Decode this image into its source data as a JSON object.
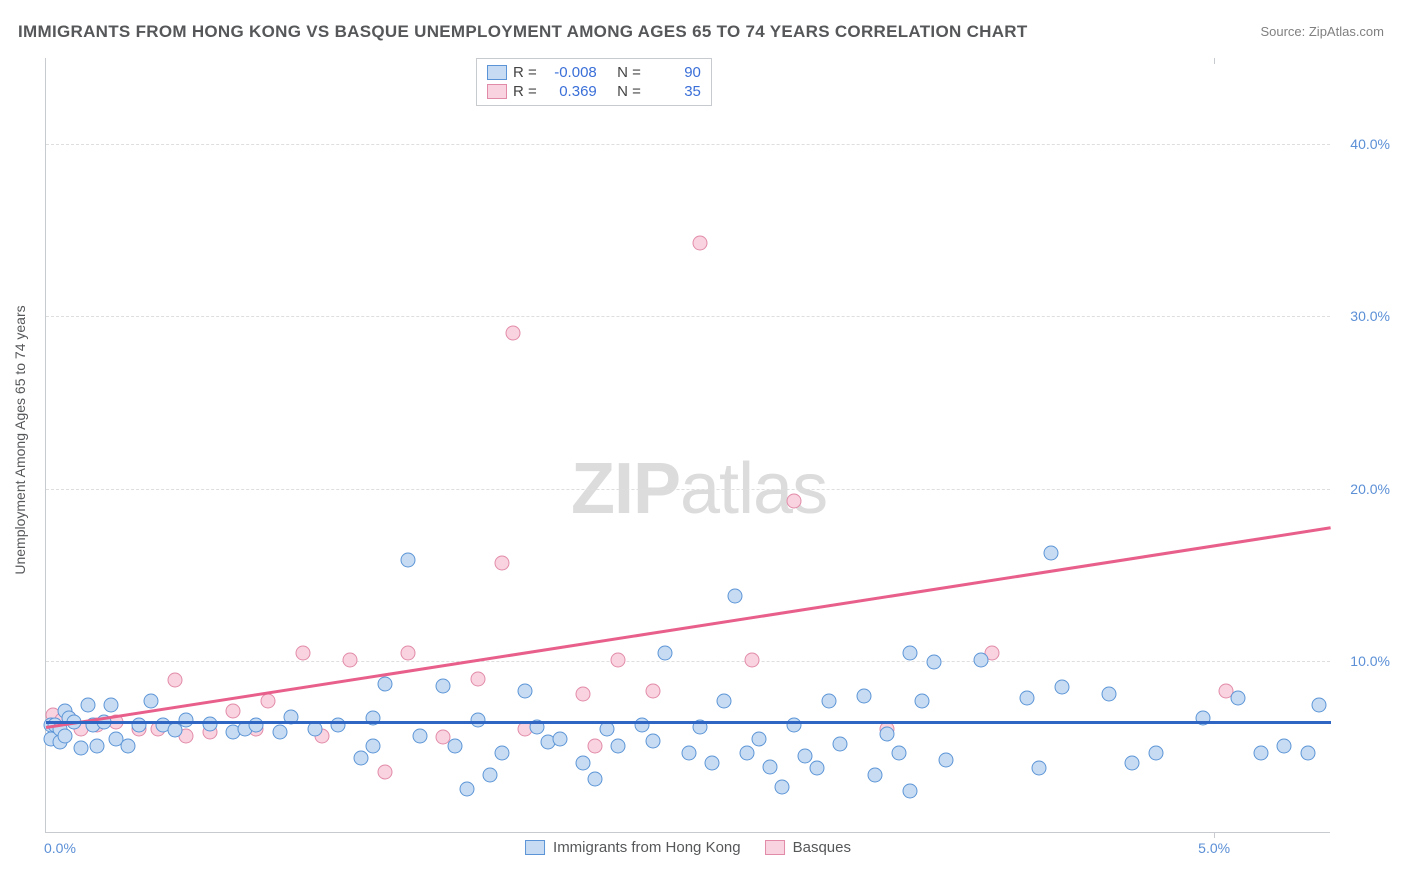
{
  "title": "IMMIGRANTS FROM HONG KONG VS BASQUE UNEMPLOYMENT AMONG AGES 65 TO 74 YEARS CORRELATION CHART",
  "source_label": "Source: ",
  "source_name": "ZipAtlas.com",
  "ylabel": "Unemployment Among Ages 65 to 74 years",
  "watermark_bold": "ZIP",
  "watermark_rest": "atlas",
  "chart": {
    "type": "scatter",
    "xlim": [
      0,
      5.5
    ],
    "ylim": [
      0,
      45
    ],
    "yticks": [
      10,
      20,
      30,
      40
    ],
    "ytick_labels": [
      "10.0%",
      "20.0%",
      "30.0%",
      "40.0%"
    ],
    "xtick_positions": [
      0,
      5
    ],
    "xtick_labels": [
      "0.0%",
      "5.0%"
    ],
    "background_color": "#ffffff",
    "grid_color": "#dedede",
    "axis_color": "#c7cbcf",
    "tick_label_color": "#5b8fd6",
    "point_radius": 7.5,
    "series": {
      "blue": {
        "label": "Immigrants from Hong Kong",
        "fill": "#c7dcf2",
        "stroke": "#5c95d7",
        "R": "-0.008",
        "N": "90",
        "trend": {
          "x1": 0,
          "y1": 6.5,
          "x2": 5.5,
          "y2": 6.5,
          "color": "#2f66c4",
          "width": 3
        },
        "points": [
          [
            0.02,
            6.2
          ],
          [
            0.02,
            5.4
          ],
          [
            0.04,
            6.2
          ],
          [
            0.06,
            5.2
          ],
          [
            0.06,
            6.0
          ],
          [
            0.08,
            7.0
          ],
          [
            0.08,
            5.6
          ],
          [
            0.1,
            6.6
          ],
          [
            0.12,
            6.4
          ],
          [
            0.15,
            4.9
          ],
          [
            0.18,
            7.4
          ],
          [
            0.2,
            6.2
          ],
          [
            0.22,
            5.0
          ],
          [
            0.25,
            6.4
          ],
          [
            0.28,
            7.4
          ],
          [
            0.3,
            5.4
          ],
          [
            0.35,
            5.0
          ],
          [
            0.4,
            6.2
          ],
          [
            0.45,
            7.6
          ],
          [
            0.5,
            6.2
          ],
          [
            0.55,
            5.9
          ],
          [
            0.6,
            6.5
          ],
          [
            0.7,
            6.3
          ],
          [
            0.8,
            5.8
          ],
          [
            0.85,
            6.0
          ],
          [
            0.9,
            6.2
          ],
          [
            1.0,
            5.8
          ],
          [
            1.05,
            6.7
          ],
          [
            1.15,
            6.0
          ],
          [
            1.25,
            6.2
          ],
          [
            1.35,
            4.3
          ],
          [
            1.4,
            6.6
          ],
          [
            1.4,
            5.0
          ],
          [
            1.45,
            8.6
          ],
          [
            1.55,
            15.8
          ],
          [
            1.6,
            5.6
          ],
          [
            1.7,
            8.5
          ],
          [
            1.75,
            5.0
          ],
          [
            1.8,
            2.5
          ],
          [
            1.85,
            6.5
          ],
          [
            1.9,
            3.3
          ],
          [
            1.95,
            4.6
          ],
          [
            2.05,
            8.2
          ],
          [
            2.1,
            6.1
          ],
          [
            2.15,
            5.2
          ],
          [
            2.2,
            5.4
          ],
          [
            2.3,
            4.0
          ],
          [
            2.35,
            3.1
          ],
          [
            2.4,
            6.0
          ],
          [
            2.45,
            5.0
          ],
          [
            2.55,
            6.2
          ],
          [
            2.6,
            5.3
          ],
          [
            2.65,
            10.4
          ],
          [
            2.75,
            4.6
          ],
          [
            2.8,
            6.1
          ],
          [
            2.85,
            4.0
          ],
          [
            2.9,
            7.6
          ],
          [
            2.95,
            13.7
          ],
          [
            3.0,
            4.6
          ],
          [
            3.05,
            5.4
          ],
          [
            3.1,
            3.8
          ],
          [
            3.15,
            2.6
          ],
          [
            3.2,
            6.2
          ],
          [
            3.25,
            4.4
          ],
          [
            3.3,
            3.7
          ],
          [
            3.35,
            7.6
          ],
          [
            3.4,
            5.1
          ],
          [
            3.5,
            7.9
          ],
          [
            3.55,
            3.3
          ],
          [
            3.6,
            5.7
          ],
          [
            3.65,
            4.6
          ],
          [
            3.7,
            10.4
          ],
          [
            3.7,
            2.4
          ],
          [
            3.75,
            7.6
          ],
          [
            3.8,
            9.9
          ],
          [
            3.85,
            4.2
          ],
          [
            4.0,
            10.0
          ],
          [
            4.2,
            7.8
          ],
          [
            4.25,
            3.7
          ],
          [
            4.3,
            16.2
          ],
          [
            4.35,
            8.4
          ],
          [
            4.55,
            8.0
          ],
          [
            4.65,
            4.0
          ],
          [
            4.75,
            4.6
          ],
          [
            4.95,
            6.6
          ],
          [
            5.1,
            7.8
          ],
          [
            5.2,
            4.6
          ],
          [
            5.3,
            5.0
          ],
          [
            5.4,
            4.6
          ],
          [
            5.45,
            7.4
          ]
        ]
      },
      "pink": {
        "label": "Basques",
        "fill": "#f9d3df",
        "stroke": "#e28ba8",
        "R": "0.369",
        "N": "35",
        "trend": {
          "x1": 0,
          "y1": 6.2,
          "x2": 5.5,
          "y2": 17.8,
          "color": "#e85f8b",
          "width": 2.5
        },
        "points": [
          [
            0.03,
            6.8
          ],
          [
            0.05,
            5.7
          ],
          [
            0.07,
            6.5
          ],
          [
            0.1,
            6.6
          ],
          [
            0.15,
            6.0
          ],
          [
            0.22,
            6.2
          ],
          [
            0.3,
            6.4
          ],
          [
            0.4,
            6.0
          ],
          [
            0.48,
            6.0
          ],
          [
            0.55,
            8.8
          ],
          [
            0.6,
            5.6
          ],
          [
            0.7,
            5.8
          ],
          [
            0.8,
            7.0
          ],
          [
            0.9,
            6.0
          ],
          [
            0.95,
            7.6
          ],
          [
            1.1,
            10.4
          ],
          [
            1.18,
            5.6
          ],
          [
            1.3,
            10.0
          ],
          [
            1.45,
            3.5
          ],
          [
            1.55,
            10.4
          ],
          [
            1.7,
            5.5
          ],
          [
            1.85,
            8.9
          ],
          [
            1.95,
            15.6
          ],
          [
            2.0,
            29.0
          ],
          [
            2.05,
            6.0
          ],
          [
            2.3,
            8.0
          ],
          [
            2.35,
            5.0
          ],
          [
            2.45,
            10.0
          ],
          [
            2.6,
            8.2
          ],
          [
            2.8,
            34.2
          ],
          [
            3.02,
            10.0
          ],
          [
            3.2,
            19.2
          ],
          [
            3.6,
            6.0
          ],
          [
            4.05,
            10.4
          ],
          [
            5.05,
            8.2
          ]
        ]
      }
    }
  },
  "stats_legend": {
    "R_label": "R =",
    "N_label": "N ="
  }
}
